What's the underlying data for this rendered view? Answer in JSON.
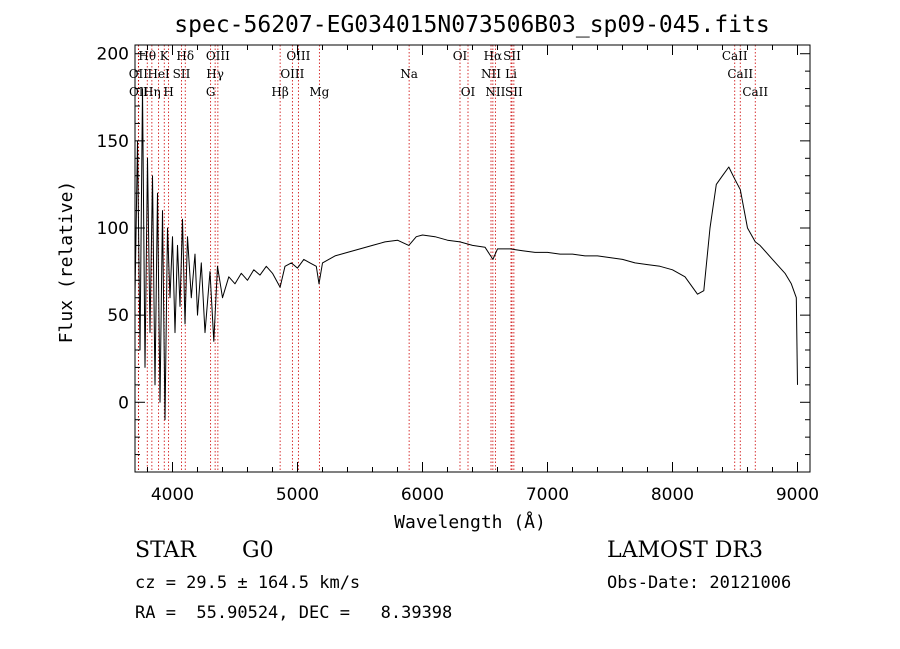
{
  "chart_data": {
    "type": "line",
    "title": "spec-56207-EG034015N073506B03_sp09-045.fits",
    "xlabel": "Wavelength (Å)",
    "ylabel": "Flux (relative)",
    "xlim": [
      3700,
      9100
    ],
    "ylim": [
      -40,
      205
    ],
    "x_ticks": [
      4000,
      5000,
      6000,
      7000,
      8000,
      9000
    ],
    "y_ticks": [
      0,
      50,
      100,
      150,
      200
    ],
    "grid": false,
    "series": [
      {
        "name": "flux",
        "points": [
          [
            3700,
            60
          ],
          [
            3720,
            150
          ],
          [
            3740,
            30
          ],
          [
            3760,
            180
          ],
          [
            3780,
            20
          ],
          [
            3800,
            140
          ],
          [
            3820,
            40
          ],
          [
            3840,
            130
          ],
          [
            3860,
            10
          ],
          [
            3880,
            120
          ],
          [
            3900,
            0
          ],
          [
            3920,
            110
          ],
          [
            3940,
            -10
          ],
          [
            3960,
            100
          ],
          [
            3980,
            60
          ],
          [
            4000,
            95
          ],
          [
            4020,
            40
          ],
          [
            4040,
            90
          ],
          [
            4060,
            55
          ],
          [
            4080,
            105
          ],
          [
            4100,
            45
          ],
          [
            4120,
            95
          ],
          [
            4150,
            60
          ],
          [
            4180,
            85
          ],
          [
            4200,
            50
          ],
          [
            4230,
            80
          ],
          [
            4260,
            40
          ],
          [
            4300,
            75
          ],
          [
            4330,
            35
          ],
          [
            4360,
            78
          ],
          [
            4400,
            60
          ],
          [
            4450,
            72
          ],
          [
            4500,
            68
          ],
          [
            4550,
            74
          ],
          [
            4600,
            70
          ],
          [
            4650,
            76
          ],
          [
            4700,
            73
          ],
          [
            4750,
            78
          ],
          [
            4800,
            74
          ],
          [
            4861,
            66
          ],
          [
            4900,
            78
          ],
          [
            4950,
            80
          ],
          [
            5000,
            77
          ],
          [
            5050,
            82
          ],
          [
            5100,
            80
          ],
          [
            5150,
            78
          ],
          [
            5172,
            68
          ],
          [
            5200,
            80
          ],
          [
            5300,
            84
          ],
          [
            5400,
            86
          ],
          [
            5500,
            88
          ],
          [
            5600,
            90
          ],
          [
            5700,
            92
          ],
          [
            5800,
            93
          ],
          [
            5890,
            90
          ],
          [
            5950,
            95
          ],
          [
            6000,
            96
          ],
          [
            6100,
            95
          ],
          [
            6200,
            93
          ],
          [
            6300,
            92
          ],
          [
            6400,
            90
          ],
          [
            6500,
            89
          ],
          [
            6563,
            82
          ],
          [
            6600,
            88
          ],
          [
            6700,
            88
          ],
          [
            6800,
            87
          ],
          [
            6900,
            86
          ],
          [
            7000,
            86
          ],
          [
            7100,
            85
          ],
          [
            7200,
            85
          ],
          [
            7300,
            84
          ],
          [
            7400,
            84
          ],
          [
            7500,
            83
          ],
          [
            7600,
            82
          ],
          [
            7700,
            80
          ],
          [
            7800,
            79
          ],
          [
            7900,
            78
          ],
          [
            8000,
            76
          ],
          [
            8100,
            72
          ],
          [
            8200,
            62
          ],
          [
            8250,
            64
          ],
          [
            8300,
            100
          ],
          [
            8350,
            125
          ],
          [
            8400,
            130
          ],
          [
            8450,
            135
          ],
          [
            8498,
            128
          ],
          [
            8542,
            122
          ],
          [
            8600,
            100
          ],
          [
            8662,
            92
          ],
          [
            8700,
            90
          ],
          [
            8800,
            82
          ],
          [
            8900,
            74
          ],
          [
            8950,
            68
          ],
          [
            8990,
            60
          ],
          [
            9000,
            10
          ]
        ]
      }
    ],
    "line_markers": [
      {
        "label": "Hθ",
        "wavelength": 3798,
        "row": 1
      },
      {
        "label": "OII",
        "wavelength": 3727,
        "row": 2
      },
      {
        "label": "OII",
        "wavelength": 3729,
        "row": 3
      },
      {
        "label": "Hη",
        "wavelength": 3835,
        "row": 3
      },
      {
        "label": "HeI",
        "wavelength": 3889,
        "row": 2
      },
      {
        "label": "K",
        "wavelength": 3934,
        "row": 1
      },
      {
        "label": "H",
        "wavelength": 3969,
        "row": 3
      },
      {
        "label": "SII",
        "wavelength": 4072,
        "row": 2
      },
      {
        "label": "Hδ",
        "wavelength": 4102,
        "row": 1
      },
      {
        "label": "Hγ",
        "wavelength": 4341,
        "row": 2
      },
      {
        "label": "OIII",
        "wavelength": 4363,
        "row": 1
      },
      {
        "label": "G",
        "wavelength": 4305,
        "row": 3
      },
      {
        "label": "Hβ",
        "wavelength": 4861,
        "row": 3
      },
      {
        "label": "OIII",
        "wavelength": 4959,
        "row": 2
      },
      {
        "label": "OIII",
        "wavelength": 5007,
        "row": 1
      },
      {
        "label": "Mg",
        "wavelength": 5175,
        "row": 3
      },
      {
        "label": "Na",
        "wavelength": 5893,
        "row": 2
      },
      {
        "label": "OI",
        "wavelength": 6300,
        "row": 1
      },
      {
        "label": "OI",
        "wavelength": 6364,
        "row": 3
      },
      {
        "label": "NII",
        "wavelength": 6548,
        "row": 2
      },
      {
        "label": "Hα",
        "wavelength": 6563,
        "row": 1
      },
      {
        "label": "NII",
        "wavelength": 6583,
        "row": 3
      },
      {
        "label": "Li",
        "wavelength": 6708,
        "row": 2
      },
      {
        "label": "SII",
        "wavelength": 6716,
        "row": 1
      },
      {
        "label": "SII",
        "wavelength": 6731,
        "row": 3
      },
      {
        "label": "CaII",
        "wavelength": 8498,
        "row": 1
      },
      {
        "label": "CaII",
        "wavelength": 8542,
        "row": 2
      },
      {
        "label": "CaII",
        "wavelength": 8662,
        "row": 3
      }
    ]
  },
  "info": {
    "class_label": "STAR",
    "subclass": "G0",
    "survey": "LAMOST DR3",
    "cz_text": "cz = 29.5 ± 164.5 km/s",
    "obs_date": "Obs-Date: 20121006",
    "ra_dec": "RA =  55.90524, DEC =   8.39398"
  },
  "colors": {
    "line": "#000000",
    "marker": "#cc0000",
    "background": "#ffffff"
  }
}
